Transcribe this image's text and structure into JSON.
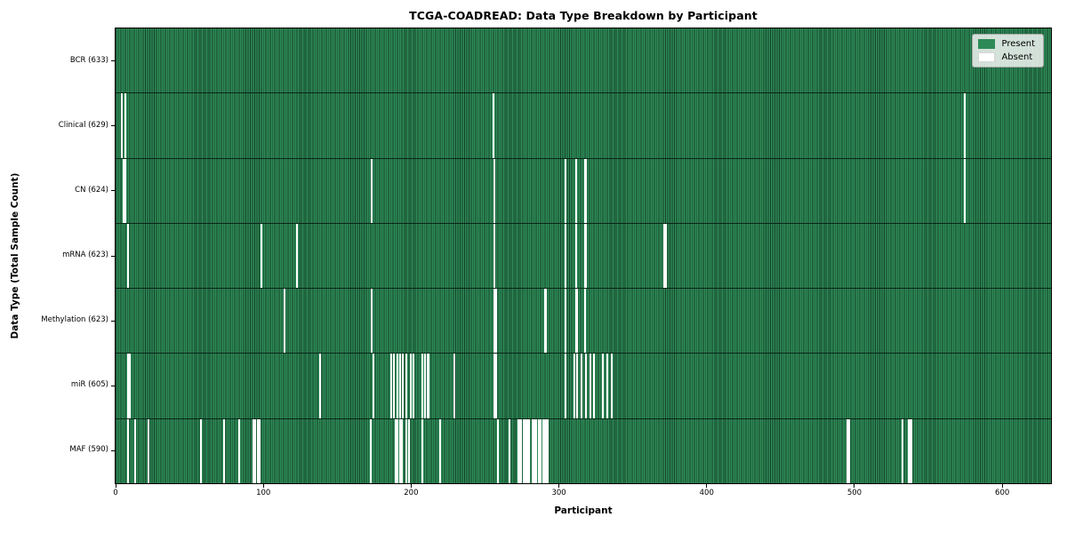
{
  "colors": {
    "present": "#2E8B57",
    "absent": "#FFFFFF",
    "bar_edge": "#14402A",
    "row_divider": "#05190E",
    "legend_border": "#A6A6A6",
    "text": "#000000"
  },
  "chart_data": {
    "type": "heatmap",
    "title": "TCGA-COADREAD: Data Type Breakdown by Participant",
    "xlabel": "Participant",
    "ylabel": "Data Type (Total Sample Count)",
    "xlim": [
      0,
      633
    ],
    "x_ticks": [
      0,
      100,
      200,
      300,
      400,
      500,
      600
    ],
    "n_participants": 633,
    "grid": false,
    "legend_position": "upper right",
    "legend": [
      {
        "label": "Present",
        "color": "#2E8B57"
      },
      {
        "label": "Absent",
        "color": "#FFFFFF"
      }
    ],
    "rows": [
      {
        "label": "BCR (633)",
        "data_type": "BCR",
        "total_samples": 633,
        "absent_count": 0,
        "absent_participants": []
      },
      {
        "label": "Clinical (629)",
        "data_type": "Clinical",
        "total_samples": 629,
        "absent_count": 4,
        "absent_participants": [
          4,
          6,
          255,
          574
        ]
      },
      {
        "label": "CN (624)",
        "data_type": "CN",
        "total_samples": 624,
        "absent_count": 9,
        "absent_participants": [
          5,
          6,
          173,
          256,
          304,
          311,
          317,
          318,
          574
        ]
      },
      {
        "label": "mRNA (623)",
        "data_type": "mRNA",
        "total_samples": 623,
        "absent_count": 10,
        "absent_participants": [
          8,
          98,
          122,
          256,
          304,
          311,
          317,
          318,
          371,
          372
        ]
      },
      {
        "label": "Methylation (623)",
        "data_type": "Methylation",
        "total_samples": 623,
        "absent_count": 10,
        "absent_participants": [
          114,
          173,
          256,
          257,
          290,
          291,
          304,
          311,
          312,
          317
        ]
      },
      {
        "label": "miR (605)",
        "data_type": "miR",
        "total_samples": 605,
        "absent_count": 28,
        "absent_participants": [
          8,
          9,
          138,
          174,
          186,
          188,
          190,
          192,
          194,
          196,
          199,
          201,
          207,
          209,
          211,
          229,
          256,
          257,
          304,
          310,
          312,
          315,
          318,
          321,
          323,
          329,
          332,
          335
        ]
      },
      {
        "label": "MAF (590)",
        "data_type": "MAF",
        "total_samples": 590,
        "absent_count": 43,
        "absent_participants": [
          8,
          13,
          22,
          57,
          73,
          83,
          93,
          94,
          96,
          97,
          172,
          189,
          190,
          192,
          193,
          196,
          198,
          207,
          219,
          258,
          266,
          272,
          273,
          274,
          276,
          277,
          278,
          279,
          282,
          283,
          284,
          286,
          287,
          289,
          290,
          291,
          292,
          495,
          496,
          532,
          536,
          537,
          538
        ]
      }
    ]
  }
}
